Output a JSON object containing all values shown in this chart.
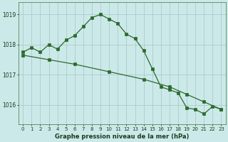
{
  "title": "Graphe pression niveau de la mer (hPa)",
  "bg_color": "#cce9e9",
  "grid_color": "#aacccc",
  "line_color": "#2d6a2d",
  "marker_color": "#2d6a2d",
  "series1_x": [
    0,
    1,
    2,
    3,
    4,
    5,
    6,
    7,
    8,
    9,
    10,
    11,
    12,
    13,
    14,
    15,
    16,
    17,
    18,
    19,
    20,
    21,
    22,
    23
  ],
  "series1_y": [
    1017.75,
    1017.9,
    1017.75,
    1018.0,
    1017.85,
    1018.15,
    1018.3,
    1018.6,
    1018.9,
    1019.0,
    1018.85,
    1018.7,
    1018.35,
    1018.2,
    1017.8,
    1017.2,
    1016.6,
    1016.5,
    1016.4,
    1015.9,
    1015.85,
    1015.7,
    1015.95,
    1015.85
  ],
  "series2_x": [
    0,
    3,
    6,
    10,
    14,
    17,
    19,
    21,
    23
  ],
  "series2_y": [
    1017.65,
    1017.5,
    1017.35,
    1017.1,
    1016.85,
    1016.6,
    1016.35,
    1016.1,
    1015.85
  ],
  "ylim_min": 1015.35,
  "ylim_max": 1019.4,
  "yticks": [
    1016,
    1017,
    1018,
    1019
  ],
  "xticks": [
    0,
    1,
    2,
    3,
    4,
    5,
    6,
    7,
    8,
    9,
    10,
    11,
    12,
    13,
    14,
    15,
    16,
    17,
    18,
    19,
    20,
    21,
    22,
    23
  ],
  "tick_fontsize": 5,
  "label_fontsize": 6,
  "figwidth": 3.2,
  "figheight": 2.0
}
